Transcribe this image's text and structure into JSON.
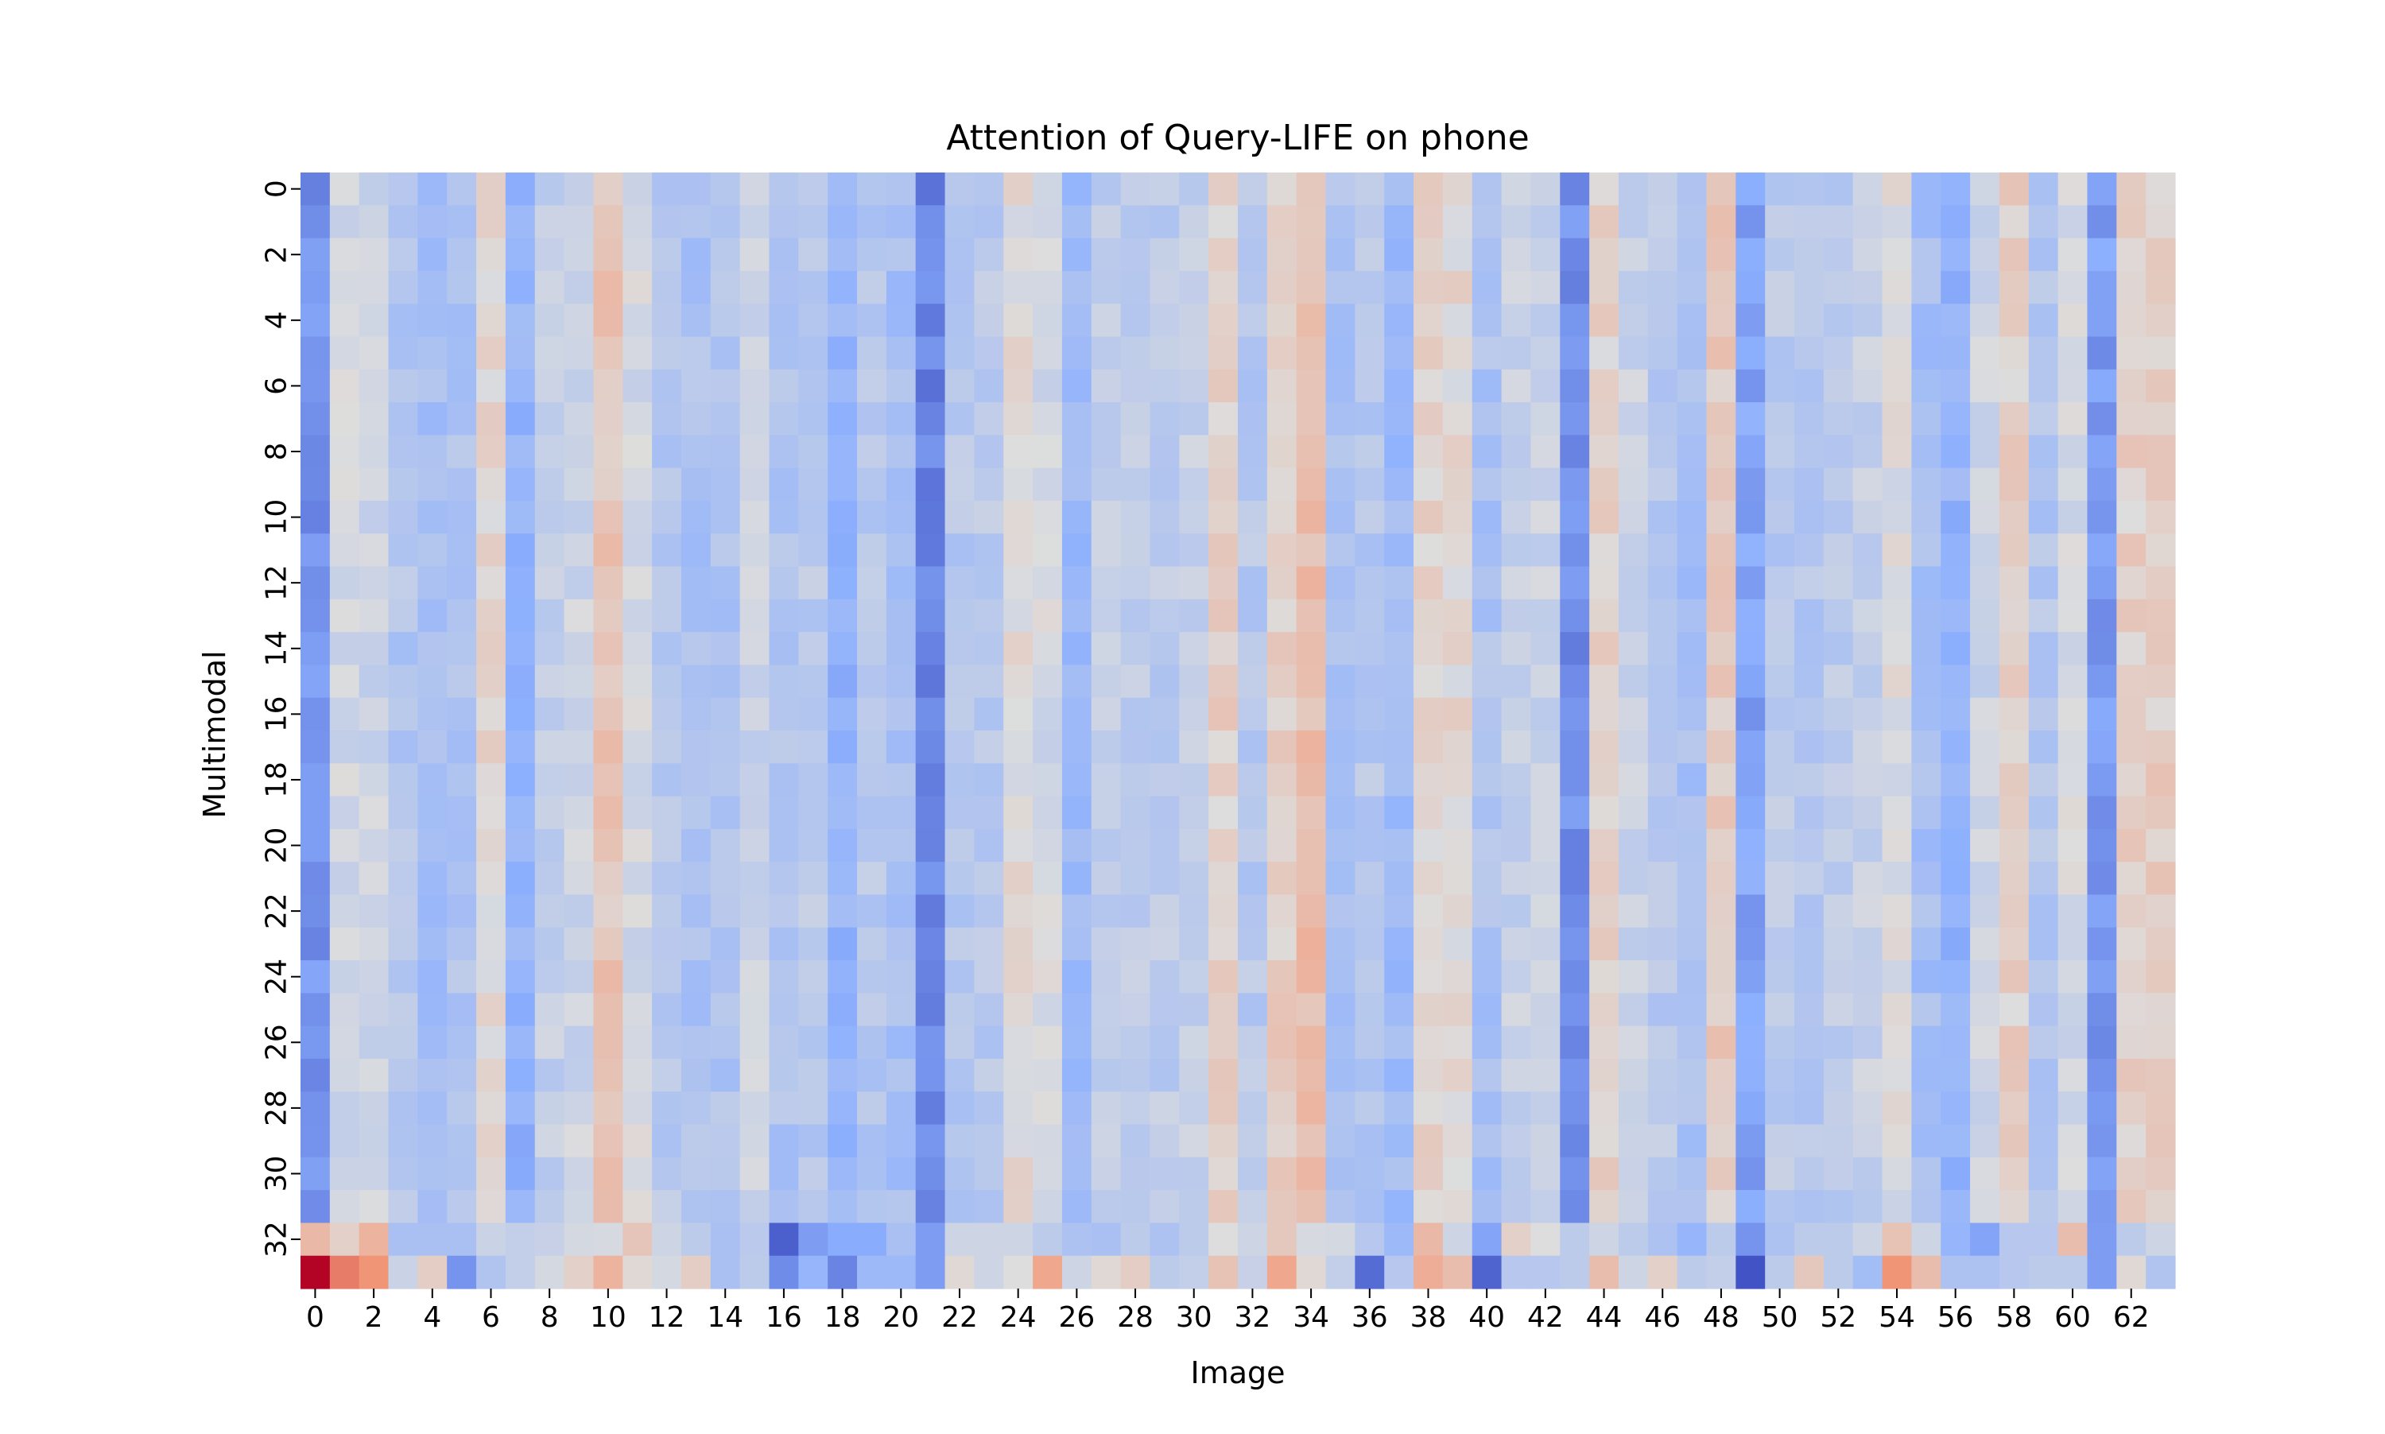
{
  "chart_data": {
    "type": "heatmap",
    "title": "Attention of Query-LIFE on phone",
    "xlabel": "Image",
    "ylabel": "Multimodal",
    "n_cols": 64,
    "n_rows": 34,
    "x_tick_labels": [
      "0",
      "2",
      "4",
      "6",
      "8",
      "10",
      "12",
      "14",
      "16",
      "18",
      "20",
      "22",
      "24",
      "26",
      "28",
      "30",
      "32",
      "34",
      "36",
      "38",
      "40",
      "42",
      "44",
      "46",
      "48",
      "50",
      "52",
      "54",
      "56",
      "58",
      "60",
      "62"
    ],
    "y_tick_labels": [
      "0",
      "2",
      "4",
      "6",
      "8",
      "10",
      "12",
      "14",
      "16",
      "18",
      "20",
      "22",
      "24",
      "26",
      "28",
      "30",
      "32"
    ],
    "colormap": "coolwarm",
    "colorbar": false,
    "grid": false,
    "value_scale": "normalized 0-1 (0 = deep blue, 0.5 = light grey, 1 = dark red)",
    "column_base": [
      0.18,
      0.46,
      0.45,
      0.37,
      0.33,
      0.36,
      0.52,
      0.27,
      0.42,
      0.45,
      0.59,
      0.47,
      0.38,
      0.35,
      0.36,
      0.44,
      0.36,
      0.39,
      0.28,
      0.38,
      0.33,
      0.14,
      0.38,
      0.39,
      0.51,
      0.47,
      0.31,
      0.41,
      0.41,
      0.4,
      0.43,
      0.55,
      0.38,
      0.56,
      0.62,
      0.35,
      0.38,
      0.31,
      0.53,
      0.52,
      0.35,
      0.43,
      0.44,
      0.17,
      0.54,
      0.44,
      0.39,
      0.34,
      0.57,
      0.22,
      0.39,
      0.38,
      0.4,
      0.43,
      0.49,
      0.33,
      0.28,
      0.45,
      0.55,
      0.37,
      0.47,
      0.2,
      0.55,
      0.56
    ],
    "row_32": [
      0.64,
      0.55,
      0.66,
      0.34,
      0.34,
      0.34,
      0.44,
      0.42,
      0.43,
      0.47,
      0.48,
      0.59,
      0.45,
      0.4,
      0.34,
      0.39,
      0.05,
      0.2,
      0.24,
      0.24,
      0.34,
      0.2,
      0.45,
      0.45,
      0.45,
      0.4,
      0.35,
      0.34,
      0.4,
      0.35,
      0.4,
      0.5,
      0.45,
      0.58,
      0.48,
      0.47,
      0.38,
      0.3,
      0.64,
      0.45,
      0.22,
      0.55,
      0.5,
      0.4,
      0.45,
      0.4,
      0.35,
      0.28,
      0.4,
      0.18,
      0.35,
      0.4,
      0.4,
      0.45,
      0.6,
      0.45,
      0.28,
      0.22,
      0.38,
      0.38,
      0.62,
      0.2,
      0.4,
      0.45
    ],
    "row_33": [
      1.0,
      0.8,
      0.76,
      0.44,
      0.56,
      0.18,
      0.36,
      0.42,
      0.47,
      0.55,
      0.66,
      0.52,
      0.47,
      0.56,
      0.34,
      0.4,
      0.16,
      0.28,
      0.14,
      0.3,
      0.3,
      0.2,
      0.52,
      0.45,
      0.5,
      0.7,
      0.45,
      0.52,
      0.56,
      0.4,
      0.42,
      0.6,
      0.43,
      0.7,
      0.52,
      0.42,
      0.08,
      0.38,
      0.68,
      0.62,
      0.06,
      0.38,
      0.38,
      0.4,
      0.62,
      0.45,
      0.55,
      0.4,
      0.42,
      0.02,
      0.4,
      0.58,
      0.4,
      0.32,
      0.76,
      0.62,
      0.35,
      0.35,
      0.38,
      0.4,
      0.4,
      0.2,
      0.52,
      0.36
    ]
  }
}
